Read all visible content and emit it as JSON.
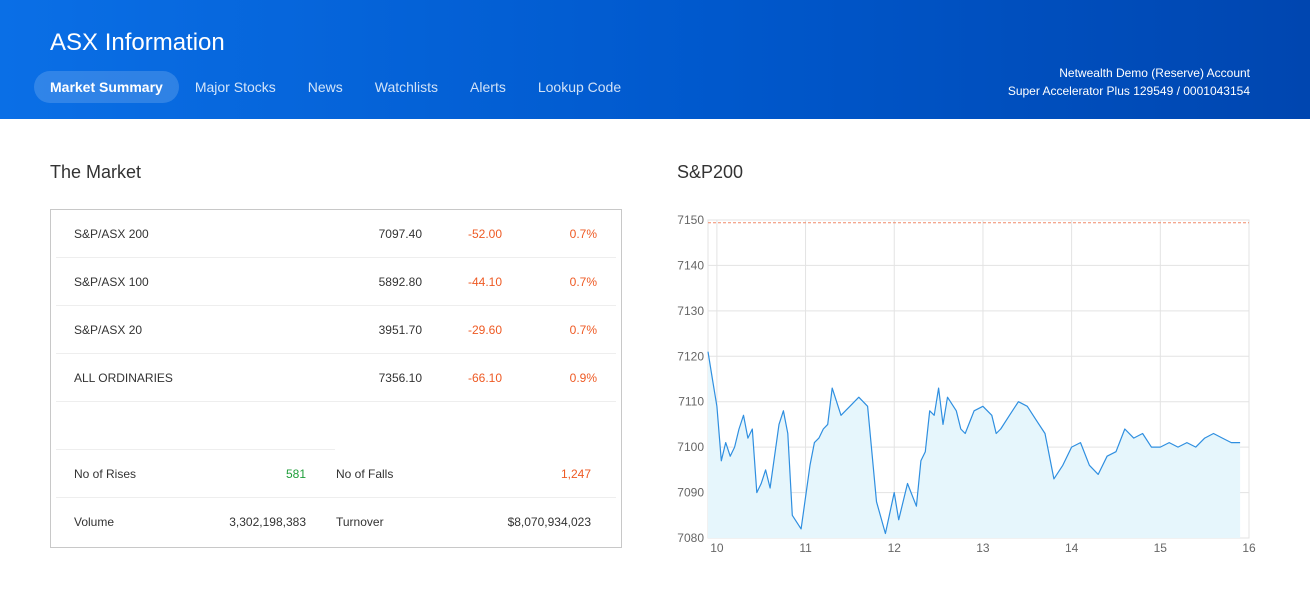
{
  "app": {
    "title": "ASX Information"
  },
  "nav": {
    "items": [
      {
        "label": "Market Summary",
        "active": true
      },
      {
        "label": "Major Stocks",
        "active": false
      },
      {
        "label": "News",
        "active": false
      },
      {
        "label": "Watchlists",
        "active": false
      },
      {
        "label": "Alerts",
        "active": false
      },
      {
        "label": "Lookup Code",
        "active": false
      }
    ]
  },
  "account": {
    "line1": "Netwealth Demo (Reserve) Account",
    "line2": "Super Accelerator Plus 129549 / 0001043154"
  },
  "market": {
    "title": "The Market",
    "indices": [
      {
        "name": "S&P/ASX 200",
        "value": "7097.40",
        "change": "-52.00",
        "percent": "0.7%"
      },
      {
        "name": "S&P/ASX 100",
        "value": "5892.80",
        "change": "-44.10",
        "percent": "0.7%"
      },
      {
        "name": "S&P/ASX 20",
        "value": "3951.70",
        "change": "-29.60",
        "percent": "0.7%"
      },
      {
        "name": "ALL ORDINARIES",
        "value": "7356.10",
        "change": "-66.10",
        "percent": "0.9%"
      }
    ],
    "rises_label": "No of Rises",
    "rises_value": "581",
    "falls_label": "No of Falls",
    "falls_value": "1,247",
    "volume_label": "Volume",
    "volume_value": "3,302,198,383",
    "turnover_label": "Turnover",
    "turnover_value": "$8,070,934,023"
  },
  "colors": {
    "header_start": "#0a6fe6",
    "header_end": "#0046b0",
    "negative": "#ee5a24",
    "positive": "#1f9e3a",
    "line": "#2f8fe0",
    "fill": "#e6f6fc",
    "reference": "#f08a6a"
  },
  "chart_data": {
    "type": "area",
    "title": "S&P200",
    "xlabel": "",
    "ylabel": "",
    "x_ticks": [
      "10",
      "11",
      "12",
      "13",
      "14",
      "15",
      "16"
    ],
    "y_ticks": [
      7080,
      7090,
      7100,
      7110,
      7120,
      7130,
      7140,
      7150
    ],
    "xlim": [
      9.9,
      16
    ],
    "ylim": [
      7080,
      7150
    ],
    "grid": true,
    "reference_line": 7149.4,
    "series": [
      {
        "x": [
          9.9,
          9.95,
          10.0,
          10.05,
          10.1,
          10.15,
          10.2,
          10.25,
          10.3,
          10.35,
          10.4,
          10.45,
          10.5,
          10.55,
          10.6,
          10.7,
          10.75,
          10.8,
          10.85,
          10.95,
          11.05,
          11.1,
          11.15,
          11.2,
          11.25,
          11.3,
          11.4,
          11.5,
          11.6,
          11.7,
          11.8,
          11.9,
          12.0,
          12.05,
          12.15,
          12.25,
          12.3,
          12.35,
          12.4,
          12.45,
          12.5,
          12.55,
          12.6,
          12.7,
          12.75,
          12.8,
          12.9,
          13.0,
          13.1,
          13.15,
          13.2,
          13.3,
          13.4,
          13.5,
          13.6,
          13.7,
          13.8,
          13.9,
          14.0,
          14.1,
          14.2,
          14.3,
          14.4,
          14.5,
          14.6,
          14.7,
          14.8,
          14.9,
          15.0,
          15.1,
          15.2,
          15.3,
          15.4,
          15.5,
          15.6,
          15.7,
          15.8,
          15.9
        ],
        "y": [
          7121,
          7115,
          7109,
          7097,
          7101,
          7098,
          7100,
          7104,
          7107,
          7102,
          7104,
          7090,
          7092,
          7095,
          7091,
          7105,
          7108,
          7103,
          7085,
          7082,
          7096,
          7101,
          7102,
          7104,
          7105,
          7113,
          7107,
          7109,
          7111,
          7109,
          7088,
          7081,
          7090,
          7084,
          7092,
          7087,
          7097,
          7099,
          7108,
          7107,
          7113,
          7105,
          7111,
          7108,
          7104,
          7103,
          7108,
          7109,
          7107,
          7103,
          7104,
          7107,
          7110,
          7109,
          7106,
          7103,
          7093,
          7096,
          7100,
          7101,
          7096,
          7094,
          7098,
          7099,
          7104,
          7102,
          7103,
          7100,
          7100,
          7101,
          7100,
          7101,
          7100,
          7102,
          7103,
          7102,
          7101,
          7101
        ]
      }
    ]
  }
}
